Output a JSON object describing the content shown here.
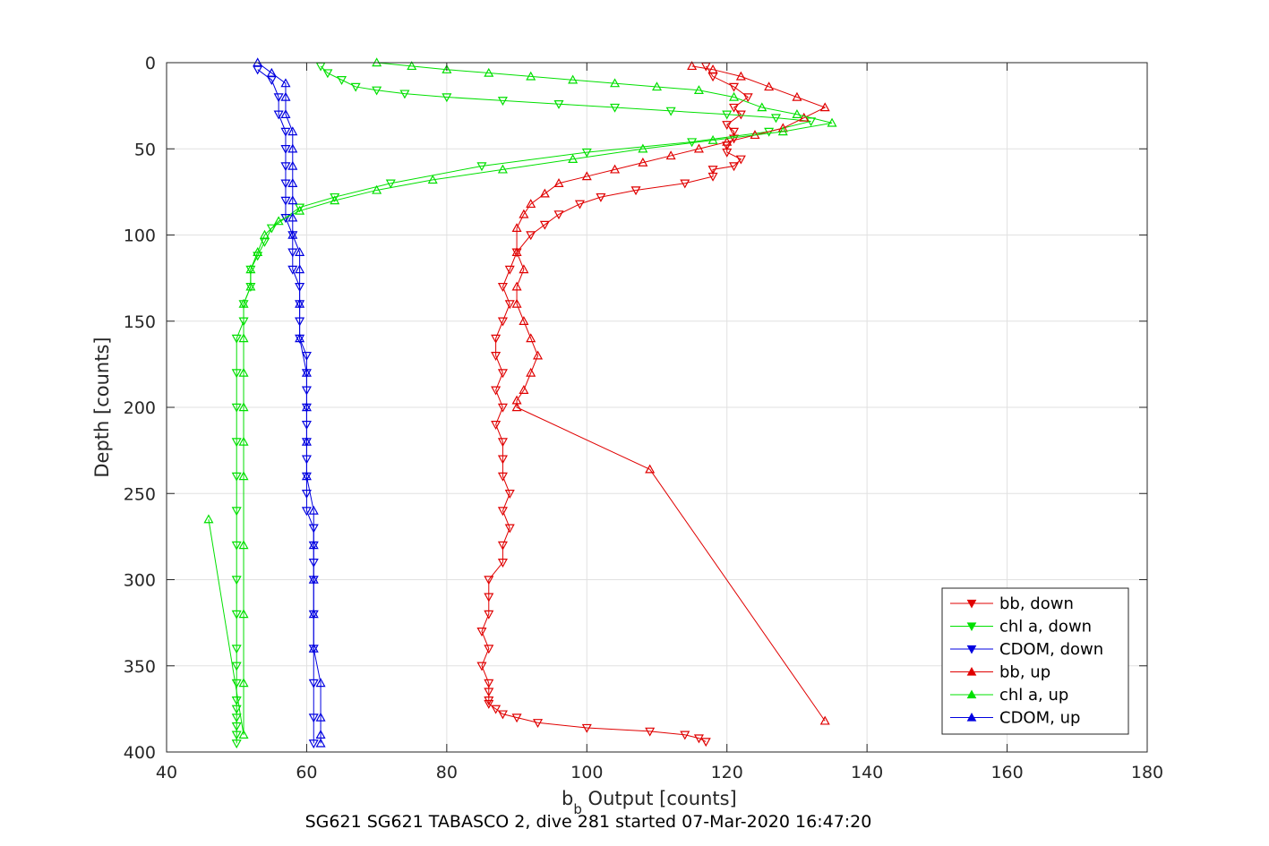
{
  "chart_data": {
    "type": "scatter",
    "xlabel": "b​",
    "xlabel_sub": "b",
    "xlabel_rest": " Output [counts]",
    "ylabel": "Depth [counts]",
    "caption": "SG621 SG621 TABASCO 2, dive 281 started 07-Mar-2020 16:47:20",
    "xlim": [
      40,
      180
    ],
    "ylim": [
      0,
      400
    ],
    "y_reversed": true,
    "grid": true,
    "legend_position": "bottom-right",
    "x_ticks": [
      40,
      60,
      80,
      100,
      120,
      140,
      160,
      180
    ],
    "y_ticks": [
      0,
      50,
      100,
      150,
      200,
      250,
      300,
      350,
      400
    ],
    "series": [
      {
        "name": "bb, down",
        "color": "#e00000",
        "marker": "triangle-down",
        "x": [
          117,
          118,
          121,
          123,
          121,
          122,
          120,
          121,
          121,
          120,
          120,
          122,
          121,
          118,
          118,
          114,
          107,
          102,
          99,
          96,
          94,
          92,
          90,
          89,
          88,
          89,
          88,
          87,
          87,
          88,
          87,
          88,
          87,
          88,
          88,
          88,
          89,
          88,
          89,
          88,
          88,
          86,
          86,
          86,
          85,
          86,
          85,
          86,
          86,
          86,
          86,
          87,
          88,
          90,
          93,
          100,
          109,
          114,
          116,
          117
        ],
        "y": [
          2,
          8,
          14,
          20,
          26,
          30,
          36,
          40,
          44,
          48,
          52,
          56,
          60,
          62,
          66,
          70,
          74,
          78,
          82,
          88,
          94,
          100,
          110,
          120,
          130,
          140,
          150,
          160,
          170,
          180,
          190,
          200,
          210,
          220,
          230,
          240,
          250,
          260,
          270,
          280,
          290,
          300,
          310,
          320,
          330,
          340,
          350,
          360,
          365,
          370,
          372,
          375,
          378,
          380,
          383,
          386,
          388,
          390,
          392,
          394
        ]
      },
      {
        "name": "chl a, down",
        "color": "#00e000",
        "marker": "triangle-down",
        "x": [
          62,
          63,
          65,
          67,
          70,
          74,
          80,
          88,
          96,
          104,
          112,
          120,
          127,
          132,
          126,
          115,
          100,
          85,
          72,
          64,
          59,
          57,
          55,
          54,
          53,
          52,
          52,
          51,
          51,
          50,
          50,
          50,
          50,
          50,
          50,
          50,
          50,
          50,
          50,
          50,
          50,
          50,
          50,
          50,
          50,
          50,
          50
        ],
        "y": [
          2,
          6,
          10,
          14,
          16,
          18,
          20,
          22,
          24,
          26,
          28,
          30,
          32,
          34,
          40,
          46,
          52,
          60,
          70,
          78,
          84,
          90,
          96,
          104,
          112,
          120,
          130,
          140,
          150,
          160,
          180,
          200,
          220,
          240,
          260,
          280,
          300,
          320,
          340,
          350,
          360,
          370,
          375,
          380,
          385,
          390,
          395
        ]
      },
      {
        "name": "CDOM, down",
        "color": "#0000e0",
        "marker": "triangle-down",
        "x": [
          53,
          55,
          56,
          56,
          57,
          57,
          57,
          57,
          57,
          57,
          58,
          58,
          58,
          59,
          59,
          59,
          59,
          60,
          60,
          60,
          60,
          60,
          60,
          60,
          60,
          60,
          60,
          61,
          61,
          61,
          61,
          61,
          61,
          61,
          61,
          61
        ],
        "y": [
          4,
          10,
          20,
          30,
          40,
          50,
          60,
          70,
          80,
          90,
          100,
          110,
          120,
          130,
          140,
          150,
          160,
          170,
          180,
          190,
          200,
          210,
          220,
          230,
          240,
          250,
          260,
          270,
          280,
          290,
          300,
          320,
          340,
          360,
          380,
          395
        ]
      },
      {
        "name": "bb, up",
        "color": "#e00000",
        "marker": "triangle-up",
        "x": [
          115,
          118,
          122,
          126,
          130,
          134,
          131,
          128,
          124,
          120,
          116,
          112,
          108,
          104,
          100,
          96,
          94,
          92,
          91,
          90,
          90,
          91,
          90,
          90,
          91,
          92,
          93,
          92,
          91,
          90,
          90,
          109,
          134
        ],
        "y": [
          2,
          4,
          8,
          14,
          20,
          26,
          32,
          38,
          42,
          46,
          50,
          54,
          58,
          62,
          66,
          70,
          76,
          82,
          88,
          96,
          110,
          120,
          130,
          140,
          150,
          160,
          170,
          180,
          190,
          196,
          200,
          236,
          382
        ]
      },
      {
        "name": "chl a, up",
        "color": "#00e000",
        "marker": "triangle-up",
        "x": [
          70,
          75,
          80,
          86,
          92,
          98,
          104,
          110,
          116,
          121,
          125,
          130,
          135,
          128,
          118,
          108,
          98,
          88,
          78,
          70,
          64,
          59,
          56,
          54,
          53,
          52,
          52,
          51,
          51,
          51,
          51,
          51,
          51,
          51,
          51,
          51,
          51,
          46
        ],
        "y": [
          0,
          2,
          4,
          6,
          8,
          10,
          12,
          14,
          16,
          20,
          26,
          30,
          35,
          40,
          45,
          50,
          56,
          62,
          68,
          74,
          80,
          86,
          92,
          100,
          110,
          120,
          130,
          140,
          160,
          180,
          200,
          220,
          240,
          280,
          320,
          360,
          390,
          265
        ]
      },
      {
        "name": "CDOM, up",
        "color": "#0000e0",
        "marker": "triangle-up",
        "x": [
          53,
          55,
          57,
          57,
          57,
          58,
          58,
          58,
          58,
          58,
          58,
          58,
          59,
          59,
          59,
          59,
          60,
          60,
          60,
          60,
          61,
          61,
          61,
          61,
          61,
          62,
          62,
          62,
          62
        ],
        "y": [
          0,
          6,
          12,
          20,
          30,
          40,
          50,
          60,
          70,
          80,
          90,
          100,
          110,
          120,
          140,
          160,
          180,
          200,
          220,
          240,
          260,
          280,
          300,
          320,
          340,
          360,
          380,
          390,
          395
        ]
      }
    ]
  }
}
